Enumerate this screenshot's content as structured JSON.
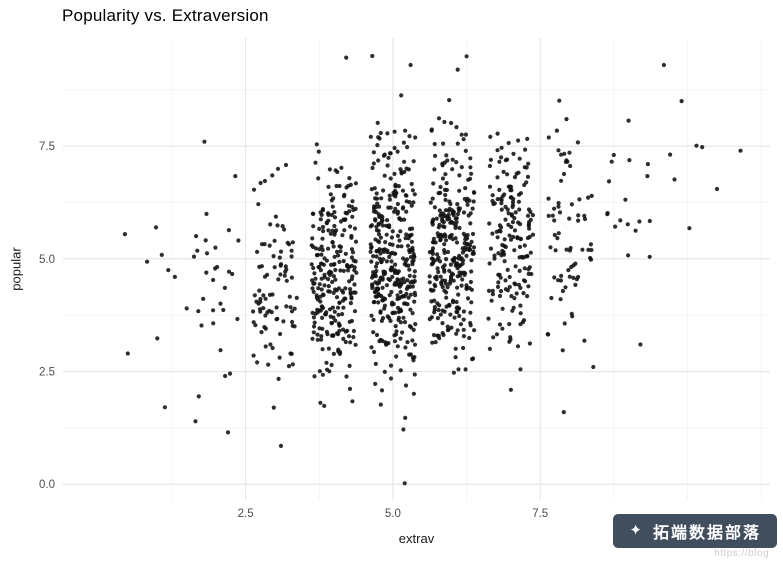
{
  "title": "Popularity vs. Extraversion",
  "watermark": {
    "badge_text": "拓端数据部落",
    "url_text": "https://blog",
    "logo_glyph": "✦",
    "badge_color": "#414e5e",
    "text_color": "#ffffff"
  },
  "chart_data": {
    "type": "scatter",
    "title": "Popularity vs. Extraversion",
    "xlabel": "extrav",
    "ylabel": "popular",
    "x_ticks": {
      "values": [
        2.5,
        5.0,
        7.5
      ],
      "labels": [
        "2.5",
        "5.0",
        "7.5"
      ]
    },
    "y_ticks": {
      "values": [
        0.0,
        2.5,
        5.0,
        7.5
      ],
      "labels": [
        "0.0",
        "2.5",
        "5.0",
        "7.5"
      ]
    },
    "x_minor": [
      1.25,
      3.75,
      6.25,
      8.75,
      10.0,
      11.25
    ],
    "y_minor": [
      1.25,
      3.75,
      6.25,
      8.75
    ],
    "xlim": [
      -0.6,
      11.4
    ],
    "ylim": [
      -0.35,
      9.9
    ],
    "grid": true,
    "legend": false,
    "colors": {
      "point": "#111111",
      "grid_major": "#e3e3e3",
      "grid_minor": "#f2f2f2",
      "panel_bg": "#ffffff",
      "tick_label": "#4d4d4d"
    },
    "point_radius": 2.1,
    "point_opacity": 0.88,
    "jitter_width": 0.38,
    "seed": 42,
    "n_points": 1347,
    "clusters": [
      {
        "x": 1,
        "n": 6,
        "y_mean": 4.1,
        "y_sd": 1.3
      },
      {
        "x": 2,
        "n": 30,
        "y_mean": 4.25,
        "y_sd": 1.25
      },
      {
        "x": 3,
        "n": 90,
        "y_mean": 4.45,
        "y_sd": 1.2
      },
      {
        "x": 4,
        "n": 260,
        "y_mean": 4.7,
        "y_sd": 1.22
      },
      {
        "x": 5,
        "n": 360,
        "y_mean": 4.95,
        "y_sd": 1.28
      },
      {
        "x": 6,
        "n": 310,
        "y_mean": 5.15,
        "y_sd": 1.28
      },
      {
        "x": 7,
        "n": 180,
        "y_mean": 5.45,
        "y_sd": 1.22
      },
      {
        "x": 8,
        "n": 70,
        "y_mean": 5.75,
        "y_sd": 1.2
      },
      {
        "x": 9,
        "n": 18,
        "y_mean": 6.1,
        "y_sd": 1.2
      },
      {
        "x": 10,
        "n": 5,
        "y_mean": 6.6,
        "y_sd": 1.15
      }
    ],
    "extra_points": [
      [
        0.45,
        5.55
      ],
      [
        0.5,
        2.9
      ],
      [
        1.8,
        7.6
      ],
      [
        5.2,
        0.02
      ],
      [
        4.65,
        9.5
      ],
      [
        5.3,
        9.3
      ],
      [
        6.1,
        9.2
      ],
      [
        9.6,
        9.3
      ],
      [
        10.9,
        7.4
      ],
      [
        10.5,
        6.55
      ],
      [
        9.9,
        8.5
      ],
      [
        2.2,
        1.15
      ],
      [
        3.1,
        0.85
      ],
      [
        7.9,
        1.6
      ],
      [
        8.4,
        2.6
      ],
      [
        9.2,
        3.1
      ],
      [
        1.5,
        3.9
      ],
      [
        1.3,
        4.6
      ]
    ]
  }
}
